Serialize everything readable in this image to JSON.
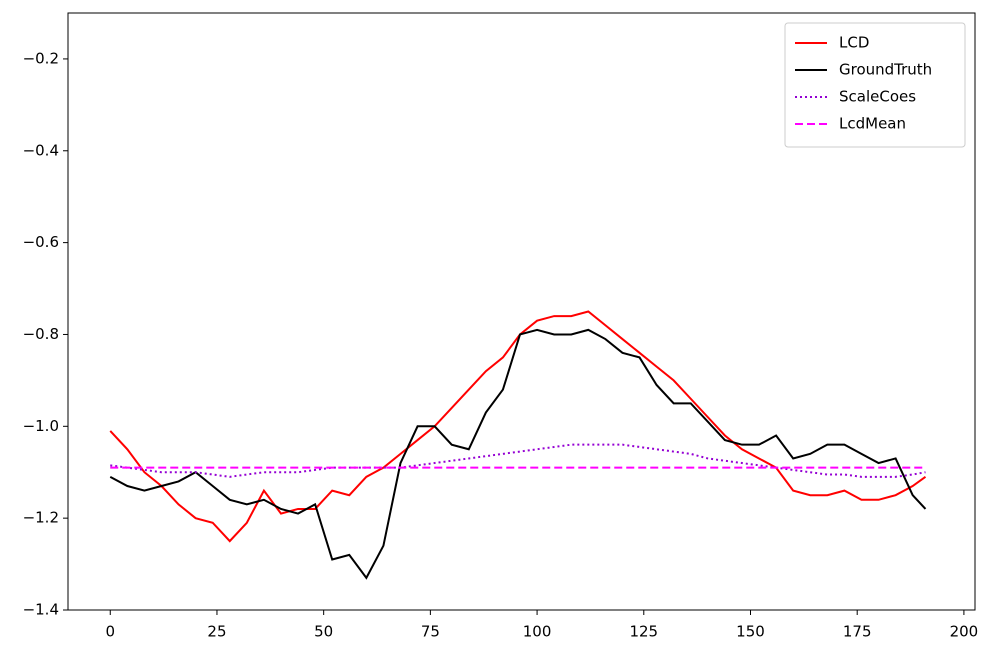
{
  "chart_data": {
    "type": "line",
    "x": [
      0,
      4,
      8,
      12,
      16,
      20,
      24,
      28,
      32,
      36,
      40,
      44,
      48,
      52,
      56,
      60,
      64,
      68,
      72,
      76,
      80,
      84,
      88,
      92,
      96,
      100,
      104,
      108,
      112,
      116,
      120,
      124,
      128,
      132,
      136,
      140,
      144,
      148,
      152,
      156,
      160,
      164,
      168,
      172,
      176,
      180,
      184,
      188,
      191
    ],
    "series": [
      {
        "name": "LCD",
        "color": "#ff0000",
        "style": "solid",
        "values": [
          -1.01,
          -1.05,
          -1.1,
          -1.13,
          -1.17,
          -1.2,
          -1.21,
          -1.25,
          -1.21,
          -1.14,
          -1.19,
          -1.18,
          -1.18,
          -1.14,
          -1.15,
          -1.11,
          -1.09,
          -1.06,
          -1.03,
          -1.0,
          -0.96,
          -0.92,
          -0.88,
          -0.85,
          -0.8,
          -0.77,
          -0.76,
          -0.76,
          -0.75,
          -0.78,
          -0.81,
          -0.84,
          -0.87,
          -0.9,
          -0.94,
          -0.98,
          -1.02,
          -1.05,
          -1.07,
          -1.09,
          -1.14,
          -1.15,
          -1.15,
          -1.14,
          -1.16,
          -1.16,
          -1.15,
          -1.13,
          -1.11
        ]
      },
      {
        "name": "GroundTruth",
        "color": "#000000",
        "style": "solid",
        "values": [
          -1.11,
          -1.13,
          -1.14,
          -1.13,
          -1.12,
          -1.1,
          -1.13,
          -1.16,
          -1.17,
          -1.16,
          -1.18,
          -1.19,
          -1.17,
          -1.29,
          -1.28,
          -1.33,
          -1.26,
          -1.08,
          -1.0,
          -1.0,
          -1.04,
          -1.05,
          -0.97,
          -0.92,
          -0.8,
          -0.79,
          -0.8,
          -0.8,
          -0.79,
          -0.81,
          -0.84,
          -0.85,
          -0.91,
          -0.95,
          -0.95,
          -0.99,
          -1.03,
          -1.04,
          -1.04,
          -1.02,
          -1.07,
          -1.06,
          -1.04,
          -1.04,
          -1.06,
          -1.08,
          -1.07,
          -1.15,
          -1.18
        ]
      },
      {
        "name": "ScaleCoes",
        "color": "#9400d3",
        "style": "dotted",
        "values": [
          -1.085,
          -1.09,
          -1.095,
          -1.1,
          -1.1,
          -1.1,
          -1.105,
          -1.11,
          -1.105,
          -1.1,
          -1.1,
          -1.1,
          -1.095,
          -1.09,
          -1.09,
          -1.09,
          -1.09,
          -1.09,
          -1.085,
          -1.08,
          -1.075,
          -1.07,
          -1.065,
          -1.06,
          -1.055,
          -1.05,
          -1.045,
          -1.04,
          -1.04,
          -1.04,
          -1.04,
          -1.045,
          -1.05,
          -1.055,
          -1.06,
          -1.07,
          -1.075,
          -1.08,
          -1.085,
          -1.09,
          -1.095,
          -1.1,
          -1.105,
          -1.105,
          -1.11,
          -1.11,
          -1.11,
          -1.105,
          -1.1
        ]
      },
      {
        "name": "LcdMean",
        "color": "#ff00ff",
        "style": "dashed",
        "values": [
          -1.09,
          -1.09,
          -1.09,
          -1.09,
          -1.09,
          -1.09,
          -1.09,
          -1.09,
          -1.09,
          -1.09,
          -1.09,
          -1.09,
          -1.09,
          -1.09,
          -1.09,
          -1.09,
          -1.09,
          -1.09,
          -1.09,
          -1.09,
          -1.09,
          -1.09,
          -1.09,
          -1.09,
          -1.09,
          -1.09,
          -1.09,
          -1.09,
          -1.09,
          -1.09,
          -1.09,
          -1.09,
          -1.09,
          -1.09,
          -1.09,
          -1.09,
          -1.09,
          -1.09,
          -1.09,
          -1.09,
          -1.09,
          -1.09,
          -1.09,
          -1.09,
          -1.09,
          -1.09,
          -1.09,
          -1.09,
          -1.09
        ]
      }
    ],
    "xlim": [
      -9.9,
      202.6
    ],
    "xticks": [
      0,
      25,
      50,
      75,
      100,
      125,
      150,
      175,
      200
    ],
    "ylim": [
      -1.4,
      -0.1
    ],
    "yticks": [
      {
        "value": -1.4,
        "label": "−1.4"
      },
      {
        "value": -1.2,
        "label": "−1.2"
      },
      {
        "value": -1.0,
        "label": "−1.0"
      },
      {
        "value": -0.8,
        "label": "−0.8"
      },
      {
        "value": -0.6,
        "label": "−0.6"
      },
      {
        "value": -0.4,
        "label": "−0.4"
      },
      {
        "value": -0.2,
        "label": "−0.2"
      }
    ],
    "legend": "upper right",
    "grid": false
  }
}
